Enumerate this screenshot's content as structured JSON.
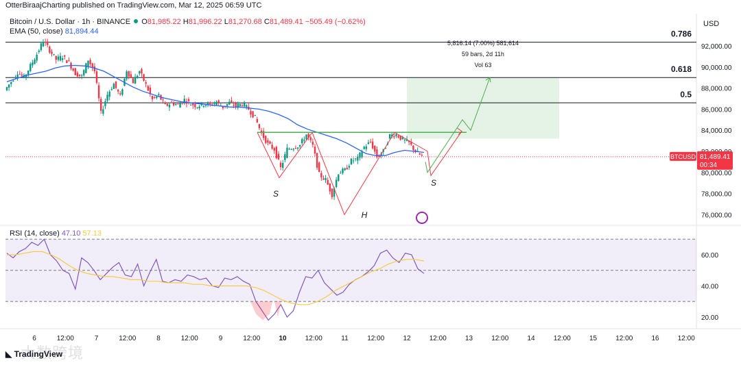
{
  "header": "OtterBiraajCharting published on TradingView.com, Mar 12, 2025 06:59 UTC",
  "symbol": {
    "name": "Bitcoin / U.S. Dollar · 1h · BINANCE",
    "o_label": "O",
    "o": "81,985.22",
    "h_label": "H",
    "h": "81,996.22",
    "l_label": "L",
    "l": "81,270.68",
    "c_label": "C",
    "c": "81,489.41",
    "change": "−505.49 (−0.62%)"
  },
  "ema": {
    "label": "EMA (50, close)",
    "value": "81,894.44"
  },
  "rsi": {
    "label": "RSI (14, close)",
    "value": "47.10",
    "ma": "57.13"
  },
  "currency": "USD",
  "price_tag": {
    "symbol": "BTCUSD",
    "price": "81,489.41",
    "timer": "00:34"
  },
  "fib": [
    {
      "label": "0.786",
      "price": 92350
    },
    {
      "label": "0.618",
      "price": 89000
    },
    {
      "label": "0.5",
      "price": 86600
    }
  ],
  "measure": {
    "line1": "5,816.14 (7.00%) 581,614",
    "line2": "59 bars, 2d 11h",
    "line3": "Vol 63"
  },
  "pattern_labels": [
    "S",
    "H",
    "S"
  ],
  "logo": "TradingView",
  "watermark": "大数跨境",
  "colors": {
    "up": "#089981",
    "down": "#f23645",
    "ema": "#2962ff",
    "neckline": "#4caf50",
    "rsi": "#7e57c2",
    "rsi_ma": "#f7c948"
  },
  "chart_data": {
    "type": "candlestick",
    "price_axis": {
      "ticks": [
        "92,000.00",
        "90,000.00",
        "88,000.00",
        "86,000.00",
        "84,000.00",
        "82,000.00",
        "80,000.00",
        "78,000.00",
        "76,000.00"
      ],
      "values": [
        92000,
        90000,
        88000,
        86000,
        84000,
        82000,
        80000,
        78000,
        76000
      ],
      "range": [
        75000,
        95000
      ]
    },
    "rsi_axis": {
      "ticks": [
        "60.00",
        "40.00",
        "20.00"
      ],
      "values": [
        60,
        40,
        20
      ],
      "range": [
        13,
        74
      ]
    },
    "x_ticks": [
      "6",
      "12:00",
      "7",
      "12:00",
      "8",
      "12:00",
      "9",
      "12:00",
      "10",
      "12:00",
      "11",
      "12:00",
      "12",
      "12:00",
      "13",
      "12:00",
      "14",
      "12:00",
      "15",
      "12:00",
      "16",
      "12:00"
    ],
    "x_bold": [
      false,
      false,
      false,
      false,
      false,
      false,
      false,
      false,
      true,
      false,
      false,
      false,
      false,
      false,
      false,
      false,
      false,
      false,
      false,
      false,
      false,
      false
    ],
    "price_path": [
      87800,
      88600,
      89500,
      89000,
      90100,
      91200,
      92500,
      91600,
      90700,
      91000,
      90400,
      89400,
      89100,
      90700,
      89600,
      85600,
      87400,
      88400,
      87200,
      89700,
      88600,
      89600,
      88300,
      86900,
      87300,
      86300,
      86600,
      86400,
      86900,
      86500,
      86300,
      86500,
      86400,
      86700,
      86200,
      86600,
      86300,
      86500,
      86000,
      85200,
      83700,
      82700,
      82200,
      80400,
      82200,
      82400,
      82600,
      83600,
      82500,
      79800,
      79300,
      77900,
      80000,
      80200,
      81100,
      81300,
      82400,
      82900,
      81500,
      82000,
      83500,
      83600,
      83100,
      82800,
      82000,
      81500
    ],
    "ema_path": [
      88600,
      88900,
      89200,
      89400,
      89600,
      89900,
      90100,
      90150,
      90100,
      89900,
      89600,
      89100,
      88600,
      88100,
      87700,
      87400,
      87100,
      86900,
      86700,
      86600,
      86500,
      86400,
      86300,
      86200,
      86200,
      86100,
      86000,
      85800,
      85500,
      85100,
      84500,
      84100,
      83800,
      83500,
      83200,
      82800,
      82300,
      81800,
      81600,
      81600,
      81900,
      82100,
      82000,
      81900
    ],
    "rsi_path": [
      61,
      58,
      62,
      64,
      68,
      66,
      70,
      60,
      56,
      50,
      48,
      38,
      58,
      55,
      50,
      44,
      48,
      52,
      55,
      47,
      46,
      54,
      40,
      49,
      57,
      43,
      42,
      44,
      43,
      47,
      46,
      44,
      45,
      40,
      39,
      45,
      44,
      46,
      43,
      41,
      30,
      24,
      18,
      22,
      28,
      20,
      24,
      36,
      46,
      45,
      50,
      42,
      38,
      34,
      36,
      41,
      44,
      46,
      49,
      53,
      61,
      63,
      58,
      55,
      61,
      60,
      51,
      48
    ],
    "rsi_ma_path": [
      60,
      60,
      61,
      62,
      62,
      60,
      57,
      53,
      50,
      48,
      47,
      46,
      46,
      45,
      44,
      44,
      43,
      43,
      42,
      42,
      42,
      41,
      41,
      40,
      40,
      40,
      40,
      40,
      39,
      37,
      34,
      31,
      29,
      28,
      28,
      30,
      33,
      37,
      40,
      43,
      46,
      49,
      51,
      54,
      56,
      57,
      57,
      56
    ],
    "neckline": 83800,
    "target_zone": [
      83200,
      89000
    ],
    "projection": [
      81000,
      80000,
      85000,
      84000,
      89000
    ]
  }
}
